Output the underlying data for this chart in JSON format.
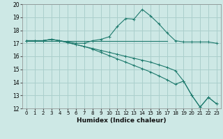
{
  "xlabel": "Humidex (Indice chaleur)",
  "xlim": [
    -0.5,
    23.5
  ],
  "ylim": [
    12,
    20
  ],
  "xticks": [
    0,
    1,
    2,
    3,
    4,
    5,
    6,
    7,
    8,
    9,
    10,
    11,
    12,
    13,
    14,
    15,
    16,
    17,
    18,
    19,
    20,
    21,
    22,
    23
  ],
  "yticks": [
    12,
    13,
    14,
    15,
    16,
    17,
    18,
    19,
    20
  ],
  "bg_color": "#cde8e5",
  "grid_color": "#aacfcc",
  "line_color": "#1e7a6d",
  "series": [
    {
      "x": [
        0,
        1,
        2,
        3,
        4,
        5,
        6,
        7,
        8,
        9,
        10,
        11,
        12,
        13,
        14,
        15,
        16,
        17,
        18,
        19,
        20,
        21,
        22,
        23
      ],
      "y": [
        17.2,
        17.2,
        17.2,
        17.3,
        17.2,
        17.1,
        17.0,
        17.0,
        17.2,
        17.3,
        17.5,
        18.3,
        18.9,
        18.85,
        19.6,
        19.1,
        18.5,
        17.8,
        17.2,
        17.1,
        17.1,
        17.1,
        17.1,
        17.0
      ],
      "marker": "+"
    },
    {
      "x": [
        0,
        17
      ],
      "y": [
        17.15,
        17.15
      ],
      "marker": null
    },
    {
      "x": [
        0,
        1,
        2,
        3,
        4,
        5,
        6,
        7,
        8,
        9,
        10,
        11,
        12,
        13,
        14,
        15,
        16,
        17,
        18,
        19,
        20,
        21,
        22,
        23
      ],
      "y": [
        17.2,
        17.2,
        17.2,
        17.3,
        17.2,
        17.05,
        16.9,
        16.75,
        16.6,
        16.45,
        16.3,
        16.15,
        16.0,
        15.85,
        15.7,
        15.55,
        15.35,
        15.15,
        14.9,
        14.1,
        13.0,
        12.1,
        12.85,
        12.35
      ],
      "marker": "+"
    },
    {
      "x": [
        0,
        1,
        2,
        3,
        4,
        5,
        6,
        7,
        8,
        9,
        10,
        11,
        12,
        13,
        14,
        15,
        16,
        17,
        18,
        19,
        20,
        21,
        22,
        23
      ],
      "y": [
        17.2,
        17.2,
        17.2,
        17.3,
        17.2,
        17.05,
        16.9,
        16.75,
        16.55,
        16.3,
        16.05,
        15.8,
        15.55,
        15.3,
        15.05,
        14.8,
        14.5,
        14.2,
        13.85,
        14.1,
        13.0,
        12.1,
        12.85,
        12.35
      ],
      "marker": "+"
    }
  ]
}
